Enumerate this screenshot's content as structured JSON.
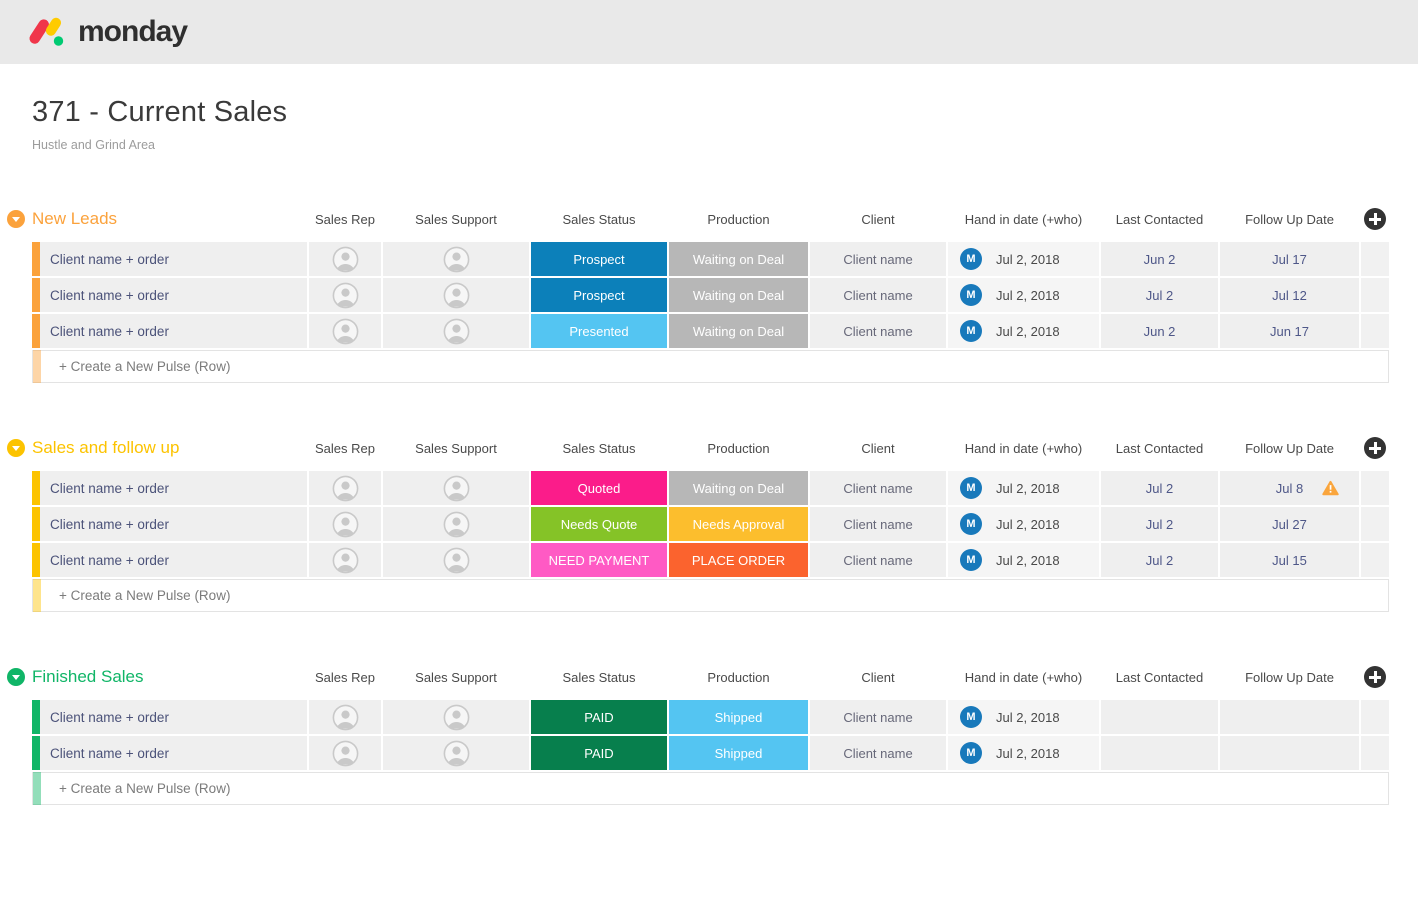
{
  "topbar": {
    "wordmark": "monday",
    "logo_colors": {
      "red": "#f0364a",
      "yellow": "#ffcb00",
      "green": "#00ca72"
    }
  },
  "board": {
    "title": "371 - Current Sales",
    "subtitle": "Hustle and Grind Area"
  },
  "columns": [
    "Sales Rep",
    "Sales Support",
    "Sales Status",
    "Production",
    "Client",
    "Hand in date (+who)",
    "Last Contacted",
    "Follow Up Date"
  ],
  "icons": {
    "add_column": "plus-icon",
    "collapse_group": "chevron-down-icon",
    "person_placeholder": "avatar-placeholder-icon",
    "warning": "warning-triangle-icon"
  },
  "warning_color": "#faa53c",
  "groups": [
    {
      "name": "New Leads",
      "color": "#fba23c",
      "create_row_label": "+ Create a New Pulse (Row)",
      "rows": [
        {
          "name": "Client name + order",
          "sales_status": {
            "label": "Prospect",
            "color": "#0c80ba"
          },
          "production": {
            "label": "Waiting on Deal",
            "color": "#b7b7b7"
          },
          "client": "Client name",
          "hand_in": {
            "avatar_initial": "M",
            "avatar_color": "#1879bb",
            "date": "Jul 2, 2018"
          },
          "last_contacted": "Jun 2",
          "follow_up": "Jul 17",
          "warning": false
        },
        {
          "name": "Client name + order",
          "sales_status": {
            "label": "Prospect",
            "color": "#0c80ba"
          },
          "production": {
            "label": "Waiting on Deal",
            "color": "#b7b7b7"
          },
          "client": "Client name",
          "hand_in": {
            "avatar_initial": "M",
            "avatar_color": "#1879bb",
            "date": "Jul 2, 2018"
          },
          "last_contacted": "Jul 2",
          "follow_up": "Jul 12",
          "warning": false
        },
        {
          "name": "Client name + order",
          "sales_status": {
            "label": "Presented",
            "color": "#54c5f2"
          },
          "production": {
            "label": "Waiting on Deal",
            "color": "#b7b7b7"
          },
          "client": "Client name",
          "hand_in": {
            "avatar_initial": "M",
            "avatar_color": "#1879bb",
            "date": "Jul 2, 2018"
          },
          "last_contacted": "Jun 2",
          "follow_up": "Jun 17",
          "warning": false
        }
      ]
    },
    {
      "name": "Sales and follow up",
      "color": "#fcc300",
      "create_row_label": "+ Create a New Pulse (Row)",
      "rows": [
        {
          "name": "Client name + order",
          "sales_status": {
            "label": "Quoted",
            "color": "#fb1c8a"
          },
          "production": {
            "label": "Waiting on Deal",
            "color": "#b7b7b7"
          },
          "client": "Client name",
          "hand_in": {
            "avatar_initial": "M",
            "avatar_color": "#1879bb",
            "date": "Jul 2, 2018"
          },
          "last_contacted": "Jul 2",
          "follow_up": "Jul 8",
          "warning": true
        },
        {
          "name": "Client name + order",
          "sales_status": {
            "label": "Needs Quote",
            "color": "#85c327"
          },
          "production": {
            "label": "Needs Approval",
            "color": "#fcbe2d"
          },
          "client": "Client name",
          "hand_in": {
            "avatar_initial": "M",
            "avatar_color": "#1879bb",
            "date": "Jul 2, 2018"
          },
          "last_contacted": "Jul 2",
          "follow_up": "Jul 27",
          "warning": false
        },
        {
          "name": "Client name + order",
          "sales_status": {
            "label": "NEED PAYMENT",
            "color": "#ff5ac4"
          },
          "production": {
            "label": "PLACE ORDER",
            "color": "#fb632e"
          },
          "client": "Client name",
          "hand_in": {
            "avatar_initial": "M",
            "avatar_color": "#1879bb",
            "date": "Jul 2, 2018"
          },
          "last_contacted": "Jul 2",
          "follow_up": "Jul 15",
          "warning": false
        }
      ]
    },
    {
      "name": "Finished Sales",
      "color": "#10b567",
      "create_row_label": "+ Create a New Pulse (Row)",
      "rows": [
        {
          "name": "Client name + order",
          "sales_status": {
            "label": "PAID",
            "color": "#077f4d"
          },
          "production": {
            "label": "Shipped",
            "color": "#54c5f2"
          },
          "client": "Client name",
          "hand_in": {
            "avatar_initial": "M",
            "avatar_color": "#1879bb",
            "date": "Jul 2, 2018"
          },
          "last_contacted": "",
          "follow_up": "",
          "warning": false
        },
        {
          "name": "Client name + order",
          "sales_status": {
            "label": "PAID",
            "color": "#077f4d"
          },
          "production": {
            "label": "Shipped",
            "color": "#54c5f2"
          },
          "client": "Client name",
          "hand_in": {
            "avatar_initial": "M",
            "avatar_color": "#1879bb",
            "date": "Jul 2, 2018"
          },
          "last_contacted": "",
          "follow_up": "",
          "warning": false
        }
      ]
    }
  ]
}
